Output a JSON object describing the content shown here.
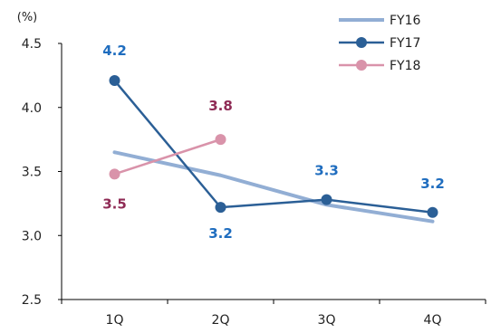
{
  "chart_data": {
    "type": "line",
    "categories": [
      "1Q",
      "2Q",
      "3Q",
      "4Q"
    ],
    "y_unit": "(%)",
    "ylim": [
      2.5,
      4.5
    ],
    "yticks": [
      "2.5",
      "3.0",
      "3.5",
      "4.0",
      "4.5"
    ],
    "grid": false,
    "legend_position": "top-right",
    "series": [
      {
        "name": "FY16",
        "values": [
          3.65,
          3.47,
          3.24,
          3.11
        ],
        "color": "#92aed4",
        "markers": false,
        "labels": [
          null,
          null,
          null,
          null
        ]
      },
      {
        "name": "FY17",
        "values": [
          4.21,
          3.22,
          3.28,
          3.18
        ],
        "color": "#2b5f96",
        "markers": true,
        "labels": [
          "4.2",
          "3.2",
          "3.3",
          "3.2"
        ],
        "label_color": "#1f6dbf"
      },
      {
        "name": "FY18",
        "values": [
          3.48,
          3.75,
          null,
          null
        ],
        "color": "#d993aa",
        "markers": true,
        "labels": [
          "3.5",
          "3.8",
          null,
          null
        ],
        "label_color": "#8f2b55"
      }
    ]
  }
}
